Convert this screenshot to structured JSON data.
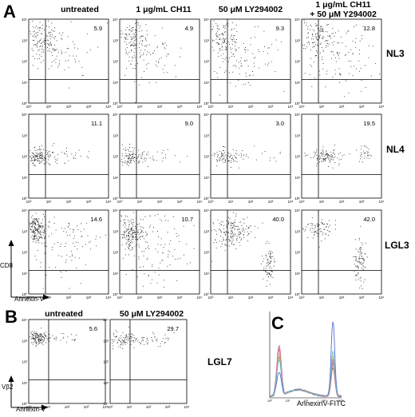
{
  "panels": {
    "A": {
      "letter": "A",
      "column_headers": [
        "untreated",
        "1 μg/mL  CH11",
        "50 μM  LY294002",
        "1 μg/mL  CH11",
        "+ 50 μM    Y294002"
      ],
      "row_labels": [
        "NL3",
        "NL4",
        "LGL3"
      ],
      "y_axis_label": "CD8",
      "x_axis_label": "Annexin-V"
    },
    "B": {
      "letter": "B",
      "column_headers": [
        "untreated",
        "50 μM LY294002"
      ],
      "row_label": "LGL7",
      "y_axis_label": "Vβ2",
      "x_axis_label": "Annexin-V"
    },
    "C": {
      "letter": "C",
      "x_axis_label": "AnnexinV-FITC",
      "line_colors": [
        "#3a55c8",
        "#c84a4a",
        "#4aa84a",
        "#8a5ac8",
        "#d8c040",
        "#d880b0",
        "#50b0c8"
      ]
    }
  },
  "tick_labels": [
    "10⁰",
    "10¹",
    "10²",
    "10³",
    "10⁴"
  ],
  "chart_data": [
    {
      "type": "scatter",
      "title": "",
      "xlabel": "Annexin-V",
      "ylabel": "CD8",
      "rows": [
        "NL3",
        "NL4",
        "LGL3"
      ],
      "columns": [
        "untreated",
        "1 μg/mL CH11",
        "50 μM LY294002",
        "1 μg/mL CH11 + 50 μM Y294002"
      ],
      "percent_annexin_positive": [
        [
          5.9,
          4.9,
          9.3,
          12.8
        ],
        [
          11.1,
          9.0,
          3.0,
          19.5
        ],
        [
          14.6,
          10.7,
          40.0,
          42.0
        ]
      ],
      "xlim": [
        "10⁰",
        "10⁴"
      ],
      "ylim": [
        "10⁰",
        "10⁴"
      ],
      "scale": "log"
    },
    {
      "type": "scatter",
      "title": "",
      "xlabel": "Annexin-V",
      "ylabel": "Vβ2",
      "rows": [
        "LGL7"
      ],
      "columns": [
        "untreated",
        "50 μM LY294002"
      ],
      "percent_annexin_positive": [
        [
          5.6,
          29.7
        ]
      ],
      "scale": "log"
    },
    {
      "type": "line",
      "title": "",
      "xlabel": "AnnexinV-FITC",
      "series_count": 7,
      "scale": "log",
      "description_peaks": "left peak near low annexin, right peak near high annexin"
    }
  ]
}
